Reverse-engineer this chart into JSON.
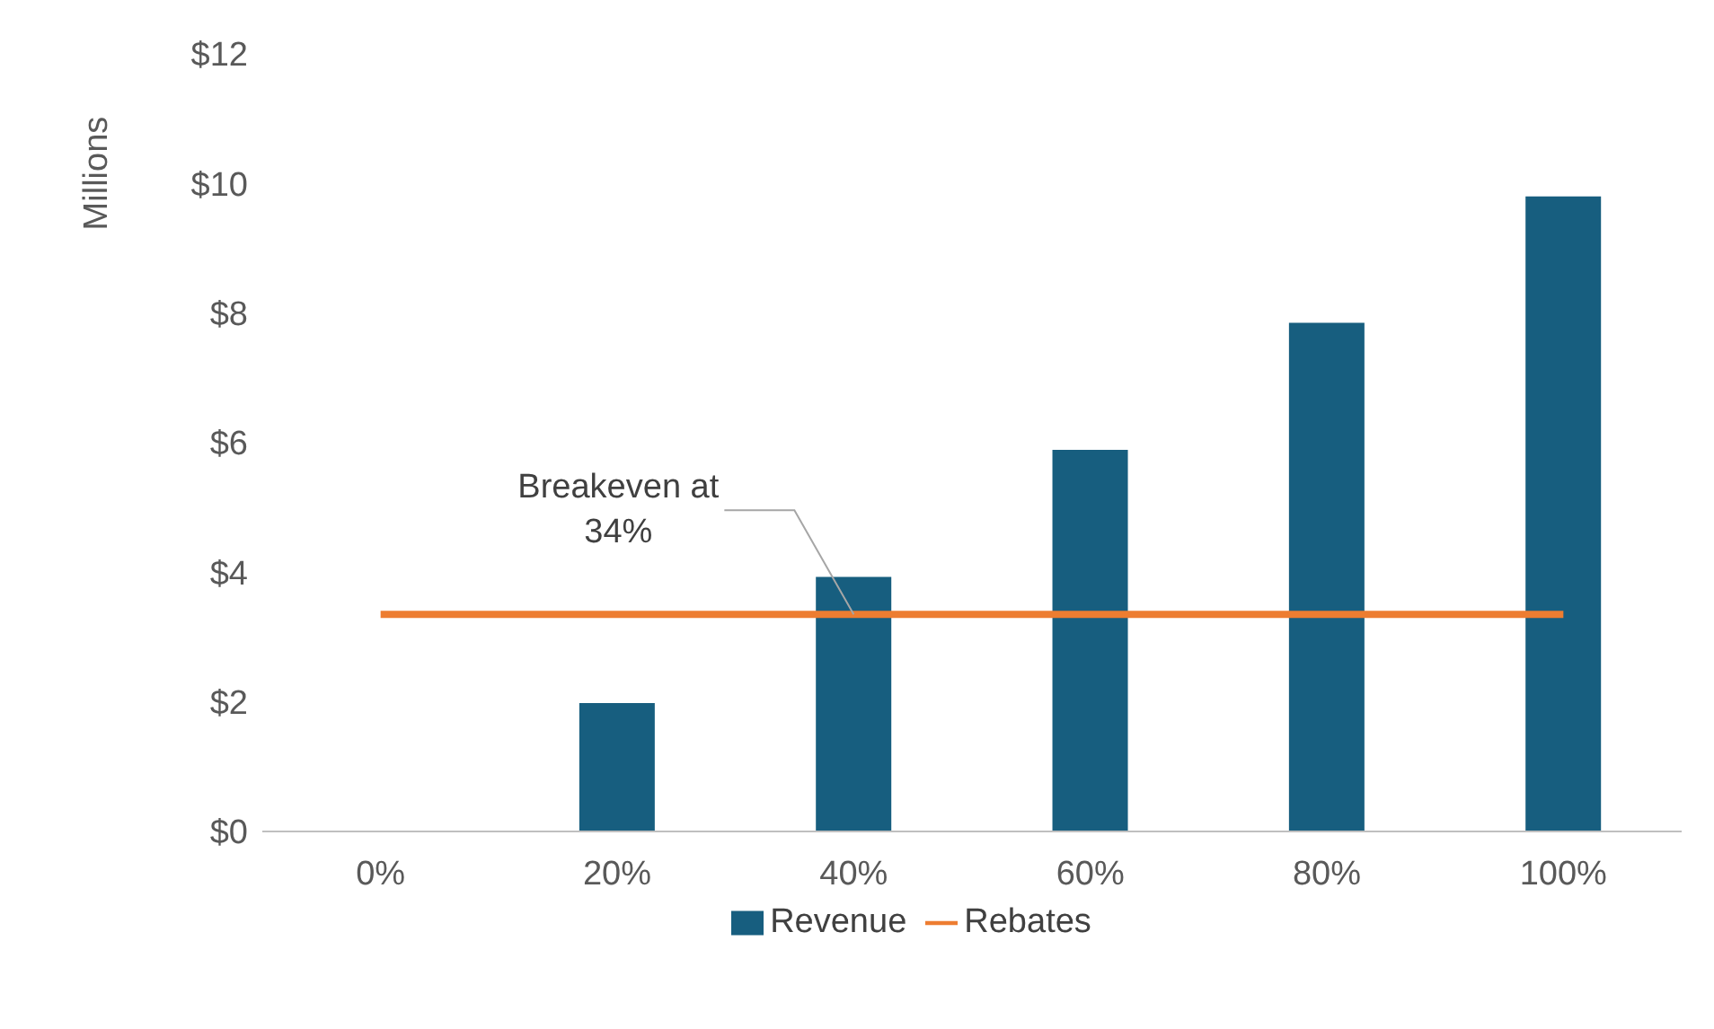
{
  "chart_data": {
    "type": "bar",
    "ylabel": "Millions",
    "categories": [
      "0%",
      "20%",
      "40%",
      "60%",
      "80%",
      "100%"
    ],
    "series": [
      {
        "name": "Revenue",
        "color": "#175e7f",
        "values": [
          0,
          1.98,
          3.93,
          5.89,
          7.85,
          9.8
        ]
      },
      {
        "name": "Rebates",
        "type": "line",
        "color": "#ed7d31",
        "values": [
          3.35,
          3.35,
          3.35,
          3.35,
          3.35,
          3.35
        ]
      }
    ],
    "ylim": [
      0,
      12
    ],
    "yticks": [
      {
        "value": 0,
        "label": "$0"
      },
      {
        "value": 2,
        "label": "$2"
      },
      {
        "value": 4,
        "label": "$4"
      },
      {
        "value": 6,
        "label": "$6"
      },
      {
        "value": 8,
        "label": "$8"
      },
      {
        "value": 10,
        "label": "$10"
      },
      {
        "value": 12,
        "label": "$12"
      }
    ],
    "annotations": [
      {
        "text": "Breakeven at 34%",
        "x": "40%",
        "y": 3.35
      }
    ],
    "legend": "bottom",
    "grid": false,
    "marker": "none"
  }
}
